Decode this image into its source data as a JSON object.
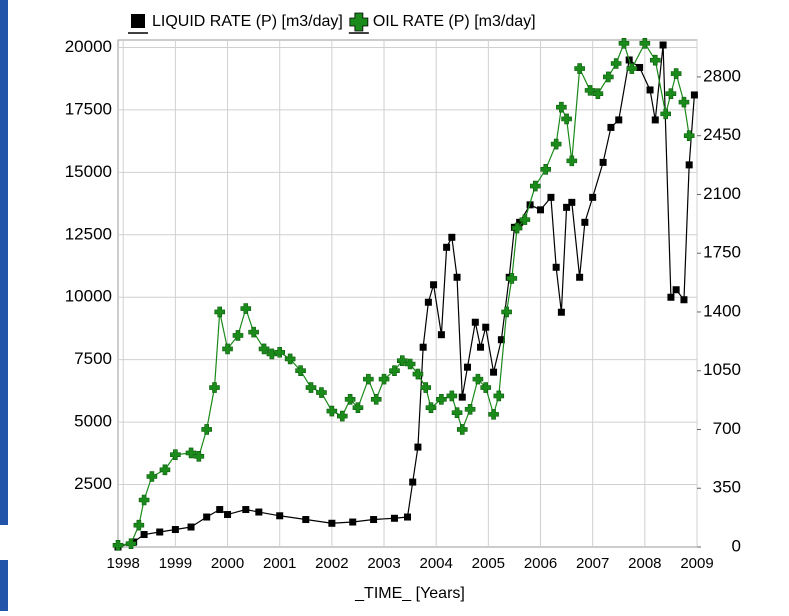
{
  "chart_data": {
    "type": "line",
    "xlabel": "_TIME_  [Years]",
    "xlim": [
      1997.9,
      2009
    ],
    "xticks": [
      1998,
      1999,
      2000,
      2001,
      2002,
      2003,
      2004,
      2005,
      2006,
      2007,
      2008,
      2009
    ],
    "ylim": [
      0,
      20300
    ],
    "yticks": [
      2500,
      5000,
      7500,
      10000,
      12500,
      15000,
      17500,
      20000
    ],
    "y2lim": [
      0,
      3020
    ],
    "y2ticks": [
      0,
      350,
      700,
      1050,
      1400,
      1750,
      2100,
      2450,
      2800
    ],
    "grid": true,
    "series": [
      {
        "name": "LIQUID RATE (P) [m3/day]",
        "color": "#000000",
        "marker": "square",
        "x": [
          1997.9,
          1998.2,
          1998.4,
          1998.7,
          1999.0,
          1999.3,
          1999.6,
          1999.85,
          2000.0,
          2000.35,
          2000.6,
          2001.0,
          2001.5,
          2002.0,
          2002.4,
          2002.8,
          2003.2,
          2003.45,
          2003.55,
          2003.65,
          2003.75,
          2003.85,
          2003.95,
          2004.1,
          2004.2,
          2004.3,
          2004.4,
          2004.5,
          2004.6,
          2004.75,
          2004.85,
          2004.95,
          2005.1,
          2005.25,
          2005.4,
          2005.5,
          2005.6,
          2005.8,
          2006.0,
          2006.2,
          2006.3,
          2006.4,
          2006.5,
          2006.6,
          2006.75,
          2006.85,
          2007.0,
          2007.2,
          2007.35,
          2007.5,
          2007.7,
          2007.9,
          2008.1,
          2008.2,
          2008.35,
          2008.5,
          2008.6,
          2008.75,
          2008.85,
          2008.95
        ],
        "values": [
          0,
          200,
          500,
          600,
          700,
          800,
          1200,
          1500,
          1300,
          1500,
          1400,
          1250,
          1100,
          950,
          1000,
          1100,
          1150,
          1200,
          2600,
          4000,
          8000,
          9800,
          10500,
          8500,
          12000,
          12400,
          10800,
          6000,
          7200,
          9000,
          8000,
          8800,
          7000,
          8300,
          10800,
          12800,
          13000,
          13700,
          13500,
          14000,
          11200,
          9400,
          13600,
          13800,
          10800,
          13000,
          14000,
          15400,
          16800,
          17100,
          19500,
          19200,
          18300,
          17100,
          20100,
          10000,
          10300,
          9900,
          15300,
          18100
        ]
      },
      {
        "name": "OIL RATE (P) [m3/day]",
        "color": "#1a8a1a",
        "marker": "plus",
        "axis": "y2",
        "x": [
          1997.9,
          1998.15,
          1998.3,
          1998.4,
          1998.55,
          1998.8,
          1999.0,
          1999.3,
          1999.45,
          1999.6,
          1999.75,
          1999.85,
          2000.0,
          2000.2,
          2000.35,
          2000.5,
          2000.7,
          2000.85,
          2001.0,
          2001.2,
          2001.4,
          2001.6,
          2001.8,
          2002.0,
          2002.2,
          2002.35,
          2002.5,
          2002.7,
          2002.85,
          2003.0,
          2003.2,
          2003.35,
          2003.5,
          2003.65,
          2003.8,
          2003.9,
          2004.1,
          2004.3,
          2004.4,
          2004.5,
          2004.65,
          2004.8,
          2004.95,
          2005.1,
          2005.2,
          2005.35,
          2005.45,
          2005.55,
          2005.7,
          2005.9,
          2006.1,
          2006.3,
          2006.4,
          2006.5,
          2006.6,
          2006.75,
          2006.95,
          2007.1,
          2007.3,
          2007.45,
          2007.6,
          2007.75,
          2008.0,
          2008.2,
          2008.4,
          2008.5,
          2008.6,
          2008.75,
          2008.85
        ],
        "values": [
          10,
          20,
          130,
          280,
          420,
          460,
          550,
          560,
          540,
          700,
          950,
          1400,
          1180,
          1260,
          1420,
          1280,
          1180,
          1150,
          1160,
          1120,
          1050,
          950,
          920,
          810,
          780,
          880,
          830,
          1000,
          880,
          1000,
          1050,
          1110,
          1090,
          1030,
          950,
          830,
          880,
          900,
          800,
          700,
          820,
          1000,
          950,
          790,
          900,
          1400,
          1600,
          1900,
          1950,
          2150,
          2250,
          2400,
          2620,
          2550,
          2300,
          2850,
          2720,
          2700,
          2800,
          2880,
          3000,
          2850,
          3000,
          2900,
          2580,
          2700,
          2820,
          2650,
          2450
        ]
      }
    ]
  }
}
